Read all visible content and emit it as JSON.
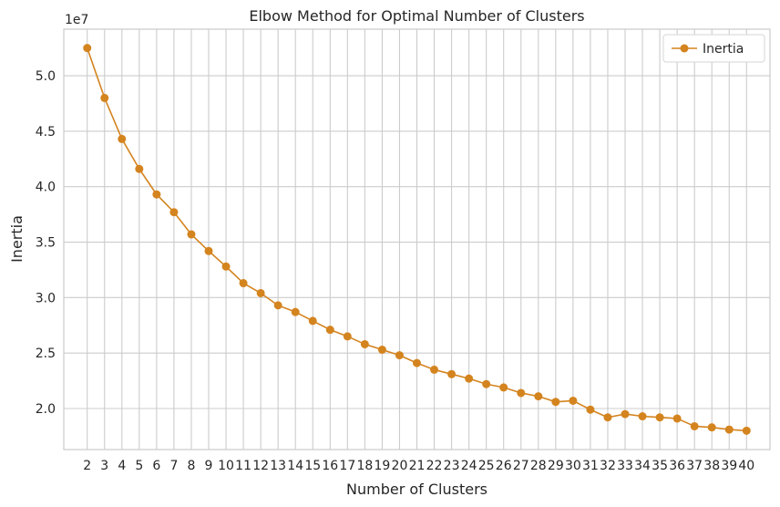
{
  "chart_data": {
    "type": "line",
    "title": "Elbow Method for Optimal Number of Clusters",
    "xlabel": "Number of Clusters",
    "ylabel": "Inertia",
    "y_multiplier_label": "1e7",
    "x": [
      2,
      3,
      4,
      5,
      6,
      7,
      8,
      9,
      10,
      11,
      12,
      13,
      14,
      15,
      16,
      17,
      18,
      19,
      20,
      21,
      22,
      23,
      24,
      25,
      26,
      27,
      28,
      29,
      30,
      31,
      32,
      33,
      34,
      35,
      36,
      37,
      38,
      39,
      40
    ],
    "series": [
      {
        "name": "Inertia",
        "values": [
          5.25,
          4.8,
          4.43,
          4.16,
          3.93,
          3.77,
          3.57,
          3.42,
          3.28,
          3.13,
          3.04,
          2.93,
          2.87,
          2.79,
          2.71,
          2.65,
          2.58,
          2.53,
          2.48,
          2.41,
          2.35,
          2.31,
          2.27,
          2.22,
          2.19,
          2.14,
          2.11,
          2.06,
          2.07,
          1.99,
          1.92,
          1.95,
          1.93,
          1.92,
          1.91,
          1.84,
          1.83,
          1.81,
          1.8
        ]
      }
    ],
    "yticks": [
      2.0,
      2.5,
      3.0,
      3.5,
      4.0,
      4.5,
      5.0
    ],
    "ytick_labels": [
      "2.0",
      "2.5",
      "3.0",
      "3.5",
      "4.0",
      "4.5",
      "5.0"
    ],
    "ylim": [
      1.63,
      5.42
    ],
    "xlim": [
      0.65,
      41.35
    ],
    "grid": true,
    "legend_position": "top-right",
    "line_color": "#d4841f"
  }
}
